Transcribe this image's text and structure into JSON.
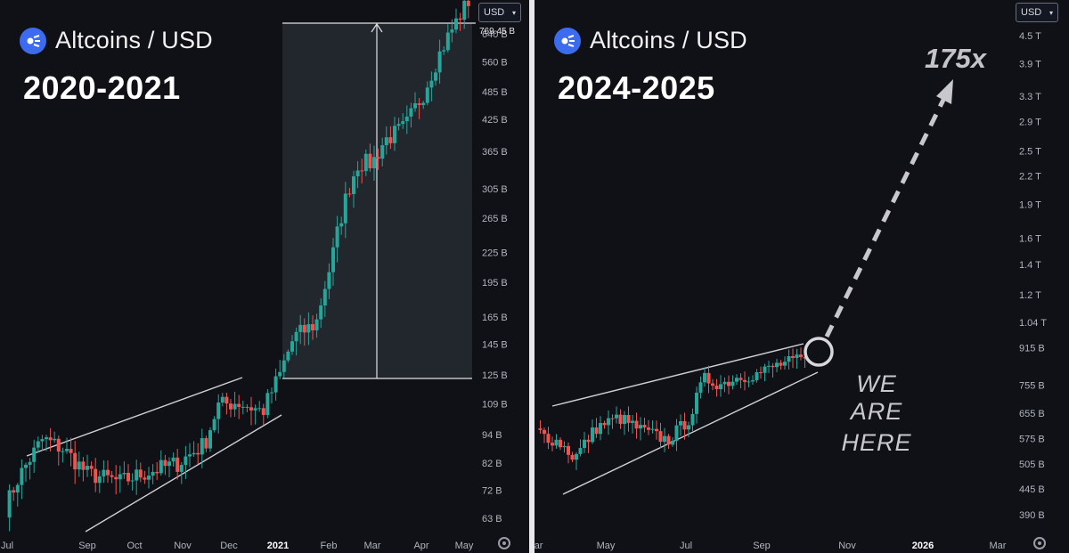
{
  "colors": {
    "up": "#26a69a",
    "down": "#ef5350",
    "line": "#cfcfd4",
    "axis_text": "#b2b5be",
    "brand": "#3c6bf0"
  },
  "left": {
    "title": "Altcoins / USD",
    "period": "2020-2021",
    "currency": "USD",
    "max_label": "769.45 B"
  },
  "right": {
    "title": "Altcoins / USD",
    "period": "2024-2025",
    "currency": "USD",
    "target_label": "175x",
    "here_line1": "WE ARE",
    "here_line2": "HERE"
  },
  "chart_data": [
    {
      "type": "candlestick",
      "title": "Altcoins / USD 2020-2021",
      "y_scale": "log",
      "y_ticks": [
        "640 B",
        "560 B",
        "485 B",
        "425 B",
        "365 B",
        "305 B",
        "265 B",
        "225 B",
        "195 B",
        "165 B",
        "145 B",
        "125 B",
        "109 B",
        "94 B",
        "82 B",
        "72 B",
        "63 B"
      ],
      "y_tick_values": [
        640,
        560,
        485,
        425,
        365,
        305,
        265,
        225,
        195,
        165,
        145,
        125,
        109,
        94,
        82,
        72,
        63
      ],
      "x_ticks": [
        "Jul",
        "Sep",
        "Oct",
        "Nov",
        "Dec",
        "2021",
        "Feb",
        "Mar",
        "Apr",
        "May"
      ],
      "unit": "B",
      "close_trend": [
        [
          "Jul",
          62
        ],
        [
          "Aug",
          76
        ],
        [
          "Aug",
          92
        ],
        [
          "Sep",
          88
        ],
        [
          "Sep",
          78
        ],
        [
          "Oct",
          75
        ],
        [
          "Oct",
          78
        ],
        [
          "Nov",
          82
        ],
        [
          "Nov",
          90
        ],
        [
          "Dec",
          108
        ],
        [
          "Dec",
          110
        ],
        [
          "Dec",
          105
        ],
        [
          "2021",
          125
        ],
        [
          "Jan",
          150
        ],
        [
          "Jan",
          160
        ],
        [
          "Feb",
          215
        ],
        [
          "Feb",
          300
        ],
        [
          "Feb",
          345
        ],
        [
          "Mar",
          345
        ],
        [
          "Mar",
          385
        ],
        [
          "Apr",
          410
        ],
        [
          "Apr",
          480
        ],
        [
          "Apr",
          590
        ],
        [
          "May",
          760
        ]
      ],
      "measure_box": {
        "from": 123,
        "to": 769.45
      }
    },
    {
      "type": "candlestick",
      "title": "Altcoins / USD 2024-2025",
      "y_scale": "log",
      "y_ticks": [
        "4.5 T",
        "3.9 T",
        "3.3 T",
        "2.9 T",
        "2.5 T",
        "2.2 T",
        "1.9 T",
        "1.6 T",
        "1.4 T",
        "1.2 T",
        "1.04 T",
        "915 B",
        "755 B",
        "655 B",
        "575 B",
        "505 B",
        "445 B",
        "390 B"
      ],
      "y_tick_values": [
        4500,
        3900,
        3300,
        2900,
        2500,
        2200,
        1900,
        1600,
        1400,
        1200,
        1040,
        915,
        755,
        655,
        575,
        505,
        445,
        390
      ],
      "x_ticks": [
        "Mar",
        "May",
        "Jul",
        "Sep",
        "Nov",
        "2026",
        "Mar"
      ],
      "unit": "B",
      "close_trend": [
        [
          "Mar",
          600
        ],
        [
          "Apr",
          560
        ],
        [
          "Apr",
          520
        ],
        [
          "May",
          610
        ],
        [
          "May",
          640
        ],
        [
          "Jun",
          600
        ],
        [
          "Jun",
          570
        ],
        [
          "Jul",
          640
        ],
        [
          "Jul",
          780
        ],
        [
          "Aug",
          760
        ],
        [
          "Aug",
          790
        ],
        [
          "Sep",
          800
        ],
        [
          "Sep",
          840
        ],
        [
          "Oct",
          860
        ]
      ],
      "projection": {
        "from": 900,
        "to": 4100,
        "multiple": "175x"
      }
    }
  ]
}
